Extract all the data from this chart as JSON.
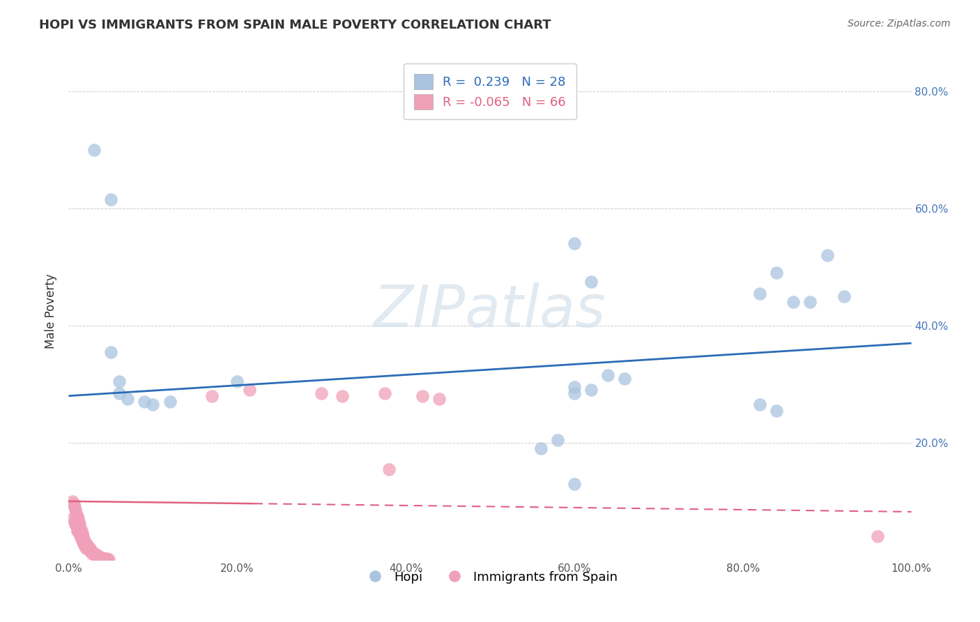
{
  "title": "HOPI VS IMMIGRANTS FROM SPAIN MALE POVERTY CORRELATION CHART",
  "source": "Source: ZipAtlas.com",
  "ylabel": "Male Poverty",
  "xlim": [
    0,
    1.0
  ],
  "ylim": [
    0,
    0.85
  ],
  "background_color": "#ffffff",
  "watermark_text": "ZIPatlas",
  "hopi_r": 0.239,
  "hopi_n": 28,
  "spain_r": -0.065,
  "spain_n": 66,
  "hopi_color": "#aac4e0",
  "spain_color": "#f0a0b8",
  "hopi_line_color": "#2b6cb8",
  "spain_line_color": "#e06080",
  "grid_color": "#cccccc",
  "hopi_x": [
    0.03,
    0.05,
    0.05,
    0.06,
    0.06,
    0.07,
    0.09,
    0.1,
    0.12,
    0.2,
    0.6,
    0.62,
    0.64,
    0.66,
    0.82,
    0.84,
    0.86,
    0.88,
    0.9,
    0.92,
    0.56,
    0.82,
    0.84,
    0.6,
    0.62,
    0.6,
    0.58,
    0.6
  ],
  "hopi_y": [
    0.7,
    0.615,
    0.355,
    0.305,
    0.285,
    0.275,
    0.27,
    0.265,
    0.27,
    0.305,
    0.295,
    0.29,
    0.315,
    0.31,
    0.455,
    0.49,
    0.44,
    0.44,
    0.52,
    0.45,
    0.19,
    0.265,
    0.255,
    0.54,
    0.475,
    0.285,
    0.205,
    0.13
  ],
  "spain_x": [
    0.005,
    0.007,
    0.008,
    0.009,
    0.01,
    0.01,
    0.01,
    0.012,
    0.013,
    0.014,
    0.015,
    0.015,
    0.016,
    0.017,
    0.018,
    0.019,
    0.02,
    0.02,
    0.021,
    0.022,
    0.023,
    0.024,
    0.025,
    0.026,
    0.027,
    0.028,
    0.03,
    0.031,
    0.032,
    0.033,
    0.035,
    0.036,
    0.037,
    0.038,
    0.04,
    0.042,
    0.043,
    0.045,
    0.046,
    0.048,
    0.005,
    0.006,
    0.007,
    0.008,
    0.009,
    0.01,
    0.011,
    0.012,
    0.013,
    0.014,
    0.015,
    0.016,
    0.017,
    0.018,
    0.02,
    0.022,
    0.025,
    0.17,
    0.215,
    0.3,
    0.325,
    0.375,
    0.38,
    0.42,
    0.44,
    0.96
  ],
  "spain_y": [
    0.07,
    0.065,
    0.06,
    0.06,
    0.055,
    0.05,
    0.05,
    0.05,
    0.045,
    0.04,
    0.04,
    0.035,
    0.035,
    0.03,
    0.03,
    0.025,
    0.02,
    0.025,
    0.025,
    0.02,
    0.02,
    0.02,
    0.015,
    0.015,
    0.015,
    0.01,
    0.01,
    0.01,
    0.008,
    0.008,
    0.007,
    0.005,
    0.005,
    0.003,
    0.003,
    0.002,
    0.002,
    0.002,
    0.001,
    0.001,
    0.1,
    0.095,
    0.09,
    0.085,
    0.08,
    0.075,
    0.07,
    0.065,
    0.06,
    0.055,
    0.05,
    0.045,
    0.04,
    0.035,
    0.03,
    0.025,
    0.02,
    0.28,
    0.29,
    0.285,
    0.28,
    0.285,
    0.155,
    0.28,
    0.275,
    0.04
  ],
  "xticks": [
    0.0,
    0.2,
    0.4,
    0.6,
    0.8,
    1.0
  ],
  "xtick_labels": [
    "0.0%",
    "20.0%",
    "40.0%",
    "60.0%",
    "80.0%",
    "100.0%"
  ],
  "yticks": [
    0.0,
    0.2,
    0.4,
    0.6,
    0.8
  ],
  "right_ytick_labels": [
    "",
    "20.0%",
    "40.0%",
    "60.0%",
    "80.0%"
  ],
  "hopi_trend_start_y": 0.28,
  "hopi_trend_end_y": 0.37,
  "spain_trend_start_y": 0.1,
  "spain_trend_end_y": 0.082
}
